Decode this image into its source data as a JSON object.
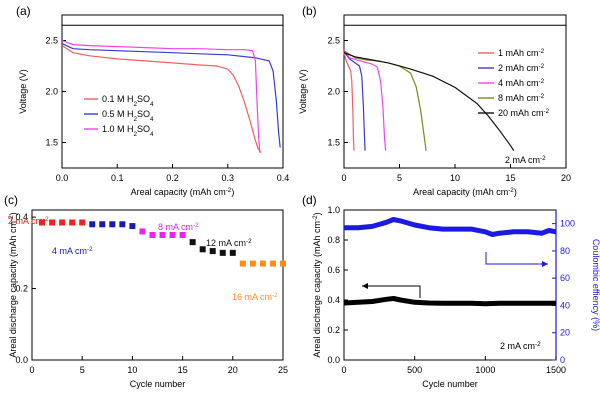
{
  "chart_data": [
    {
      "panel": "(a)",
      "type": "line",
      "xlabel": "Areal capacity  (mAh cm",
      "xlabel_sup": "-2",
      "xlabel_end": ")",
      "ylabel": "Voltage (V)",
      "xlim": [
        0,
        0.4
      ],
      "ylim": [
        1.25,
        2.75
      ],
      "xticks": [
        "0.0",
        "0.1",
        "0.2",
        "0.3",
        "0.4"
      ],
      "yticks": [
        "1.5",
        "2.0",
        "2.5"
      ],
      "grid": false,
      "legend_position": "lower-left",
      "reference_line_y": 2.65,
      "series": [
        {
          "name": "0.1 M H2SO4",
          "legend_main": "0.1 M H",
          "legend_sub": "2",
          "legend_end": "SO",
          "legend_sub2": "4",
          "color": "#f06060",
          "x": [
            0,
            0.02,
            0.05,
            0.1,
            0.15,
            0.2,
            0.25,
            0.28,
            0.3,
            0.31,
            0.32,
            0.33,
            0.34,
            0.35,
            0.355,
            0.36
          ],
          "y": [
            2.45,
            2.38,
            2.35,
            2.32,
            2.3,
            2.28,
            2.26,
            2.25,
            2.22,
            2.16,
            2.05,
            1.9,
            1.72,
            1.52,
            1.44,
            1.4
          ]
        },
        {
          "name": "0.5 M H2SO4",
          "legend_main": "0.5 M H",
          "legend_sub": "2",
          "legend_end": "SO",
          "legend_sub2": "4",
          "color": "#3a3ad8",
          "x": [
            0,
            0.02,
            0.05,
            0.1,
            0.15,
            0.2,
            0.25,
            0.3,
            0.35,
            0.375,
            0.382,
            0.388,
            0.392,
            0.395
          ],
          "y": [
            2.47,
            2.42,
            2.41,
            2.4,
            2.39,
            2.38,
            2.37,
            2.36,
            2.33,
            2.3,
            2.2,
            1.9,
            1.6,
            1.45
          ]
        },
        {
          "name": "1.0 M H2SO4",
          "legend_main": "1.0 M H",
          "legend_sub": "2",
          "legend_end": "SO",
          "legend_sub2": "4",
          "color": "#ee44ee",
          "x": [
            0,
            0.02,
            0.05,
            0.1,
            0.15,
            0.2,
            0.25,
            0.3,
            0.33,
            0.345,
            0.35,
            0.353,
            0.356,
            0.358
          ],
          "y": [
            2.5,
            2.46,
            2.45,
            2.44,
            2.43,
            2.42,
            2.42,
            2.41,
            2.41,
            2.4,
            2.3,
            1.9,
            1.55,
            1.4
          ]
        }
      ]
    },
    {
      "panel": "(b)",
      "type": "line",
      "xlabel": "Areal capacity  (mAh cm",
      "xlabel_sup": "-2",
      "xlabel_end": ")",
      "ylabel": "Voltage (V)",
      "xlim": [
        0,
        20
      ],
      "ylim": [
        1.25,
        2.75
      ],
      "xticks": [
        "0",
        "5",
        "10",
        "15",
        "20"
      ],
      "yticks": [
        "1.5",
        "2.0",
        "2.5"
      ],
      "grid": false,
      "legend_position": "right",
      "annotation": "2 mA cm",
      "annotation_sup": "-2",
      "reference_line_y": 2.65,
      "series": [
        {
          "name": "1 mAh cm-2",
          "legend_main": "1 mAh cm",
          "legend_sup": "-2",
          "color": "#f06060",
          "x": [
            0,
            0.2,
            0.4,
            0.6,
            0.7,
            0.8,
            0.85,
            0.9
          ],
          "y": [
            2.38,
            2.3,
            2.25,
            2.2,
            2.1,
            1.8,
            1.55,
            1.42
          ]
        },
        {
          "name": "2 mAh cm-2",
          "legend_main": "2 mAh cm",
          "legend_sup": "-2",
          "color": "#3a3ad8",
          "x": [
            0,
            0.5,
            1.0,
            1.4,
            1.6,
            1.75,
            1.85,
            1.9
          ],
          "y": [
            2.39,
            2.32,
            2.28,
            2.25,
            2.15,
            1.85,
            1.55,
            1.42
          ]
        },
        {
          "name": "4 mAh cm-2",
          "legend_main": "4 mAh cm",
          "legend_sup": "-2",
          "color": "#ee44ee",
          "x": [
            0,
            0.5,
            1.5,
            2.5,
            3.0,
            3.3,
            3.5,
            3.65,
            3.75
          ],
          "y": [
            2.41,
            2.33,
            2.3,
            2.27,
            2.24,
            2.1,
            1.85,
            1.55,
            1.42
          ]
        },
        {
          "name": "8 mAh cm-2",
          "legend_main": "8 mAh cm",
          "legend_sup": "-2",
          "color": "#7a8a20",
          "x": [
            0,
            1,
            2,
            3,
            4,
            5,
            6,
            6.5,
            6.9,
            7.2,
            7.4
          ],
          "y": [
            2.4,
            2.33,
            2.31,
            2.3,
            2.28,
            2.25,
            2.18,
            2.05,
            1.82,
            1.58,
            1.42
          ]
        },
        {
          "name": "20 mAh cm-2",
          "legend_main": "20 mAh cm",
          "legend_sup": "-2",
          "color": "#111111",
          "x": [
            0,
            1,
            2,
            4,
            6,
            8,
            10,
            12,
            13,
            14,
            15,
            15.3
          ],
          "y": [
            2.38,
            2.34,
            2.32,
            2.28,
            2.22,
            2.15,
            2.04,
            1.88,
            1.76,
            1.62,
            1.47,
            1.42
          ]
        }
      ]
    },
    {
      "panel": "(c)",
      "type": "scatter",
      "xlabel": "Cycle number",
      "ylabel": "Areal discharge capacity",
      "ylabel_unit": " (mAh cm",
      "ylabel_sup": "-2",
      "ylabel_end": ")",
      "xlim": [
        0,
        25
      ],
      "ylim": [
        0,
        0.42
      ],
      "xticks": [
        "0",
        "5",
        "10",
        "15",
        "20",
        "25"
      ],
      "yticks": [
        "0.0",
        "0.2",
        "0.4"
      ],
      "grid": false,
      "series": [
        {
          "name": "2 mA cm-2",
          "label_main": "2 mA cm",
          "label_sup": "-2",
          "color": "#ee2222",
          "x": [
            1,
            2,
            3,
            4,
            5
          ],
          "y": [
            0.385,
            0.385,
            0.385,
            0.385,
            0.385
          ]
        },
        {
          "name": "4 mA cm-2",
          "label_main": "4 mA cm",
          "label_sup": "-2",
          "color": "#1a1ab0",
          "x": [
            6,
            7,
            8,
            9,
            10
          ],
          "y": [
            0.38,
            0.38,
            0.38,
            0.38,
            0.375
          ]
        },
        {
          "name": "8 mA cm-2",
          "label_main": "8 mA cm",
          "label_sup": "-2",
          "color": "#ee22ee",
          "x": [
            11,
            12,
            13,
            14,
            15
          ],
          "y": [
            0.36,
            0.35,
            0.35,
            0.35,
            0.35
          ]
        },
        {
          "name": "12 mA cm-2",
          "label_main": "12 mA cm",
          "label_sup": "-2",
          "color": "#111111",
          "x": [
            16,
            17,
            18,
            19,
            20
          ],
          "y": [
            0.33,
            0.31,
            0.305,
            0.3,
            0.3
          ]
        },
        {
          "name": "16 mA cm-2",
          "label_main": "16 mA cm",
          "label_sup": "-2",
          "color": "#ff8c1a",
          "x": [
            21,
            22,
            23,
            24,
            25
          ],
          "y": [
            0.27,
            0.27,
            0.27,
            0.27,
            0.27
          ]
        }
      ]
    },
    {
      "panel": "(d)",
      "type": "line",
      "xlabel": "Cycle number",
      "ylabel": "Areal discharge capacity",
      "ylabel_unit": " (mAh cm",
      "ylabel_sup": "-2",
      "ylabel_end": ")",
      "y2label": "Coulombic effiency (%)",
      "xlim": [
        0,
        1500
      ],
      "ylim": [
        0,
        1.0
      ],
      "y2lim": [
        0,
        110
      ],
      "xticks": [
        "0",
        "500",
        "1000",
        "1500"
      ],
      "yticks": [
        "0.0",
        "0.2",
        "0.4",
        "0.6",
        "0.8",
        "1.0"
      ],
      "y2ticks": [
        "0",
        "20",
        "40",
        "60",
        "80",
        "100"
      ],
      "grid": false,
      "annotation": "2 mA cm",
      "annotation_sup": "-2",
      "series": [
        {
          "name": "Areal discharge capacity",
          "axis": "left",
          "color": "#000000",
          "x": [
            0,
            100,
            200,
            300,
            350,
            400,
            500,
            600,
            700,
            800,
            900,
            1000,
            1100,
            1200,
            1300,
            1400,
            1500
          ],
          "y": [
            0.38,
            0.385,
            0.39,
            0.405,
            0.41,
            0.4,
            0.385,
            0.38,
            0.378,
            0.378,
            0.378,
            0.375,
            0.378,
            0.378,
            0.378,
            0.378,
            0.378
          ]
        },
        {
          "name": "Coulombic effiency",
          "axis": "right",
          "color": "#1a1ae0",
          "x": [
            0,
            100,
            200,
            300,
            350,
            400,
            500,
            600,
            700,
            800,
            900,
            1000,
            1050,
            1100,
            1200,
            1300,
            1400,
            1450,
            1500
          ],
          "y": [
            97,
            97,
            98,
            101,
            103,
            102,
            99,
            97,
            96,
            96,
            96,
            94,
            92,
            93,
            94,
            94,
            93,
            95,
            94
          ]
        }
      ]
    }
  ]
}
